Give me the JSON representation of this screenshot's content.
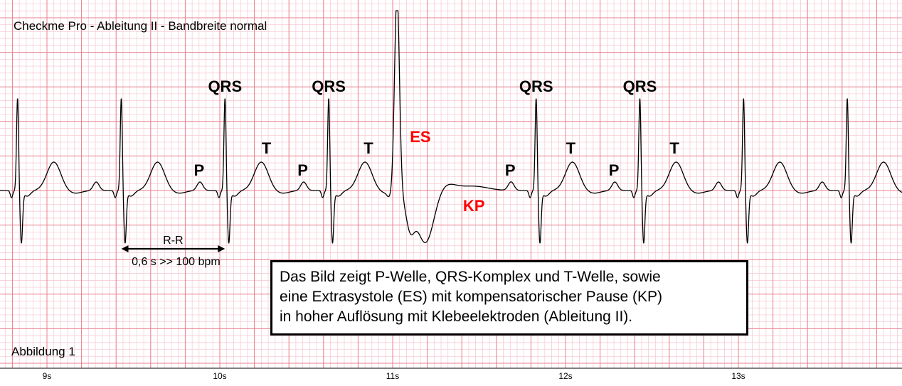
{
  "chart_data": {
    "type": "line",
    "title": "Checkme Pro - Ableitung II - Bandbreite normal",
    "figure_label": "Abbildung 1",
    "x_ticks": [
      "9s",
      "10s",
      "11s",
      "12s",
      "13s"
    ],
    "x_tick_values": [
      9,
      10,
      11,
      12,
      13
    ],
    "xlim": [
      8.73,
      13.93
    ],
    "x_unit": "s",
    "grid": true,
    "colors": {
      "grid_minor": "#f6c6d0",
      "grid_major": "#e8808f",
      "trace": "#000000",
      "highlight": "#ff0000"
    },
    "beats": [
      {
        "type": "normal",
        "r_time": 8.83
      },
      {
        "type": "normal",
        "r_time": 9.43
      },
      {
        "type": "normal",
        "r_time": 10.03
      },
      {
        "type": "normal",
        "r_time": 10.63
      },
      {
        "type": "extrasystole",
        "r_time": 11.02
      },
      {
        "type": "normal",
        "r_time": 11.83
      },
      {
        "type": "normal",
        "r_time": 12.43
      },
      {
        "type": "normal",
        "r_time": 13.03
      },
      {
        "type": "normal",
        "r_time": 13.63
      }
    ],
    "annotations": [
      {
        "text": "QRS",
        "color": "#000000",
        "x": 10.03
      },
      {
        "text": "QRS",
        "color": "#000000",
        "x": 10.63
      },
      {
        "text": "QRS",
        "color": "#000000",
        "x": 11.83
      },
      {
        "text": "QRS",
        "color": "#000000",
        "x": 12.43
      },
      {
        "text": "P",
        "color": "#000000",
        "x": 9.88
      },
      {
        "text": "P",
        "color": "#000000",
        "x": 10.48
      },
      {
        "text": "P",
        "color": "#000000",
        "x": 11.68
      },
      {
        "text": "P",
        "color": "#000000",
        "x": 12.28
      },
      {
        "text": "T",
        "color": "#000000",
        "x": 10.27
      },
      {
        "text": "T",
        "color": "#000000",
        "x": 10.86
      },
      {
        "text": "T",
        "color": "#000000",
        "x": 12.03
      },
      {
        "text": "T",
        "color": "#000000",
        "x": 12.63
      },
      {
        "text": "ES",
        "color": "#ff0000",
        "x": 11.16
      },
      {
        "text": "KP",
        "color": "#ff0000",
        "x": 11.47
      }
    ],
    "interval": {
      "label": "R-R",
      "caption": "0,6 s >> 100 bpm",
      "from": 9.43,
      "to": 10.03
    }
  },
  "caption": {
    "lines": [
      "Das Bild zeigt P-Welle, QRS-Komplex und T-Welle, sowie",
      "eine Extrasystole (ES) mit kompensatorischer Pause (KP)",
      "in hoher Auflösung mit Klebeelektroden (Ableitung II)."
    ]
  }
}
